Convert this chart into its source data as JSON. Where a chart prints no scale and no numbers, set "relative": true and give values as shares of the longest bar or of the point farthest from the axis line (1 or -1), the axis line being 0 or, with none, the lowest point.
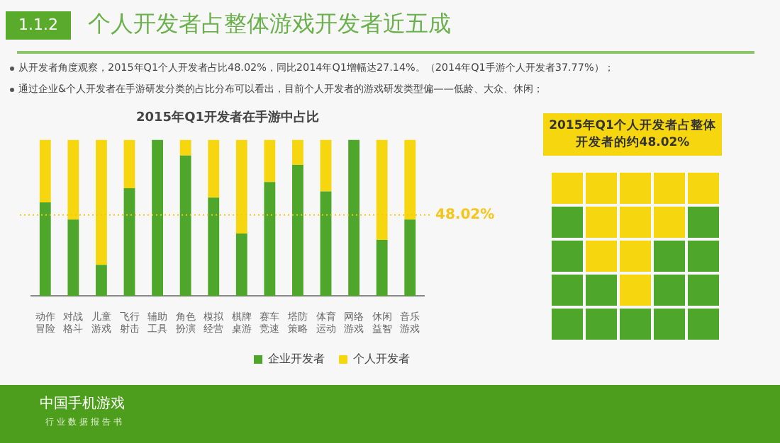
{
  "chart_data": [
    {
      "type": "other",
      "title": "个人开发者占整体游戏开发者近五成",
      "annotations": [
        "1.1.2",
        "从开发者角度观察，2015年Q1个人开发者占比48.02%，同比2014年Q1增幅达27.14%。（2014年Q1手游个人开发者37.77%）；",
        "通过企业&个人开发者在手游研发分类的占比分布可以看出，目前个人开发者的游戏研发类型偏——低龄、大众、休闲；",
        "中国手机游戏",
        "行业数据报告书"
      ]
    },
    {
      "type": "bar",
      "title": "2015年Q1开发者在手游中占比",
      "stacked": true,
      "relative": true,
      "legend": "bottom right",
      "categories": [
        "动作冒险",
        "对战格斗",
        "儿童游戏",
        "飞行射击",
        "辅助工具",
        "角色扮演",
        "模拟经营",
        "棋牌桌游",
        "赛车竞速",
        "塔防策略",
        "体育运动",
        "网络游戏",
        "休闲益智",
        "音乐游戏"
      ],
      "series": [
        {
          "name": "企业开发者",
          "color": "#4ea72a",
          "values": [
            0.6,
            0.49,
            0.2,
            0.69,
            1,
            0.9,
            0.63,
            0.4,
            0.73,
            0.84,
            0.67,
            1,
            0.36,
            0.49
          ]
        },
        {
          "name": "个人开发者",
          "color": "#f5d60f",
          "values": [
            0.4,
            0.51,
            0.8,
            0.31,
            0,
            0.1,
            0.37,
            0.6,
            0.27,
            0.16,
            0.33,
            0,
            0.64,
            0.51
          ]
        }
      ],
      "ref_lines": [
        {
          "axis": "y",
          "value": 0.5198,
          "color": "#f5c518",
          "line_style": "dotted"
        }
      ],
      "annotations": [
        "48.02%"
      ]
    },
    {
      "type": "other",
      "title": "2015年Q1个人开发者占整体开发者的约48.02%"
    }
  ]
}
